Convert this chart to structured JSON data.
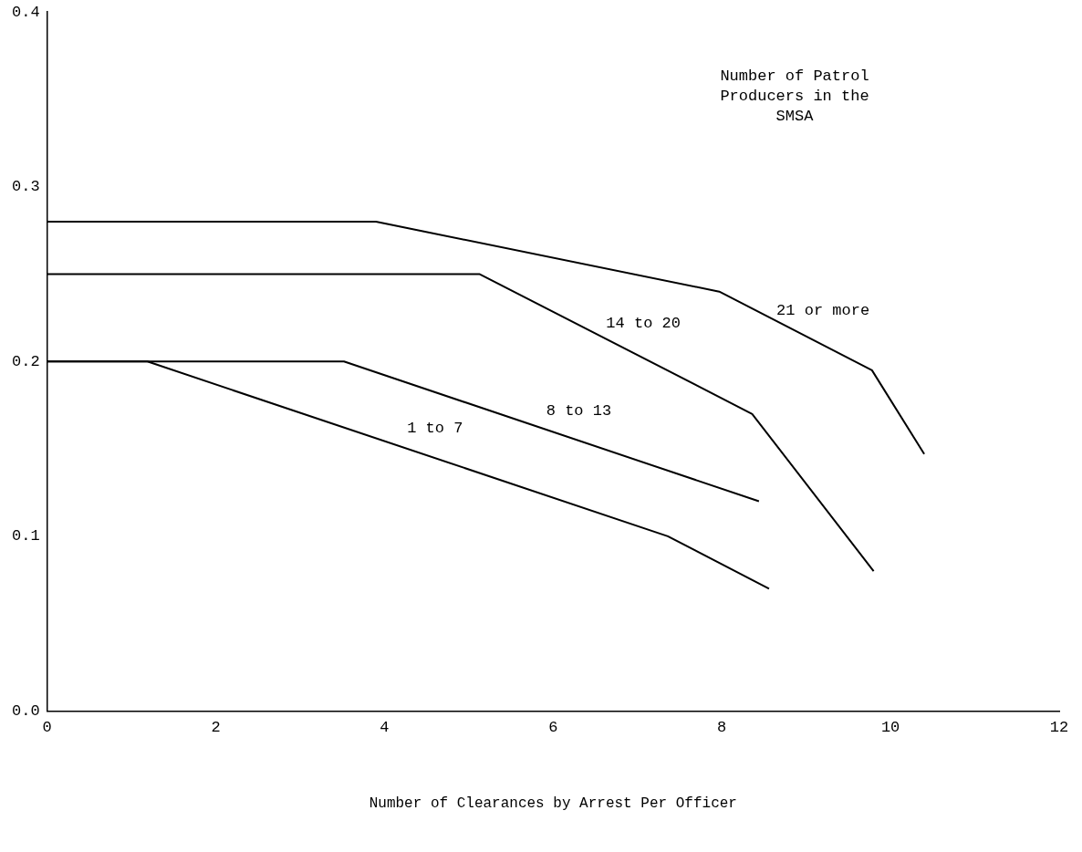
{
  "chart_data": {
    "type": "line",
    "xlabel": "Number of Clearances by Arrest Per Officer",
    "annotations": [
      "Number of Patrol Producers in the SMSA"
    ],
    "xlim": [
      0,
      12
    ],
    "xticks": [
      0,
      2,
      4,
      6,
      8,
      10,
      12
    ],
    "ylim": [
      0,
      0.4
    ],
    "yticks": [
      {
        "value": 0,
        "label": "0.0"
      },
      {
        "value": 0.1,
        "label": "0.1"
      },
      {
        "value": 0.2,
        "label": "0.2"
      },
      {
        "value": 0.3,
        "label": "0.3"
      },
      {
        "value": 0.4,
        "label": "0.4"
      }
    ],
    "grid": false,
    "legend": false,
    "marker": "none",
    "line_style": "solid",
    "series": [
      {
        "name": "21 or more",
        "color": "#000000",
        "x": [
          0,
          3.9,
          7.97,
          9.78,
          10.4
        ],
        "values": [
          0.28,
          0.28,
          0.24,
          0.195,
          0.147
        ]
      },
      {
        "name": "14 to 20",
        "color": "#000000",
        "x": [
          0,
          5.13,
          8.36,
          9.8
        ],
        "values": [
          0.25,
          0.25,
          0.17,
          0.08
        ]
      },
      {
        "name": "8 to 13",
        "color": "#000000",
        "x": [
          0,
          3.52,
          8.44
        ],
        "values": [
          0.2,
          0.2,
          0.12
        ]
      },
      {
        "name": "1 to 7",
        "color": "#000000",
        "x": [
          0,
          1.19,
          7.36,
          8.56
        ],
        "values": [
          0.2,
          0.2,
          0.1,
          0.07
        ]
      }
    ]
  }
}
